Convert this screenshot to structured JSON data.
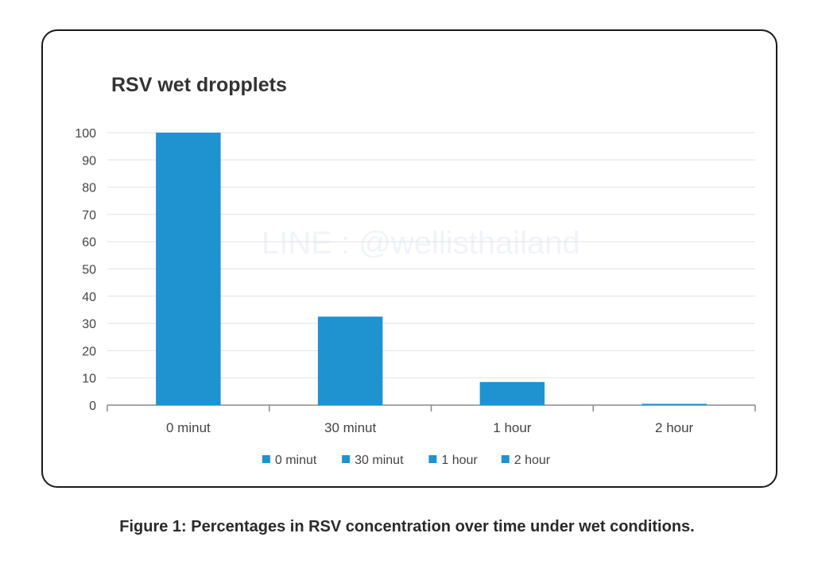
{
  "chart_data": {
    "type": "bar",
    "title": "RSV wet dropplets",
    "categories": [
      "0 minut",
      "30 minut",
      "1 hour",
      "2 hour"
    ],
    "values": [
      100,
      32.5,
      8.5,
      0.5
    ],
    "ylim": [
      0,
      100
    ],
    "yticks": [
      0,
      10,
      20,
      30,
      40,
      50,
      60,
      70,
      80,
      90,
      100
    ],
    "xlabel": "",
    "ylabel": "",
    "grid": true,
    "legend": {
      "placement": "bottom",
      "entries": [
        "0 minut",
        "30 minut",
        "1 hour",
        "2 hour"
      ]
    },
    "bar_color": "#1f93cf"
  },
  "watermark": "LINE : @wellisthailand",
  "caption": "Figure 1: Percentages in RSV concentration over time under wet conditions."
}
